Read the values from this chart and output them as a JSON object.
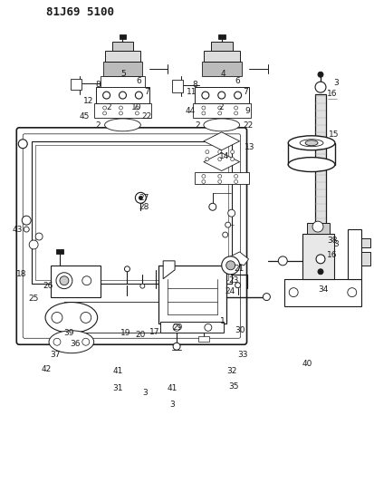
{
  "title": "81J69 5100",
  "bg_color": "#ffffff",
  "line_color": "#1a1a1a",
  "fig_width": 4.13,
  "fig_height": 5.33,
  "dpi": 100
}
